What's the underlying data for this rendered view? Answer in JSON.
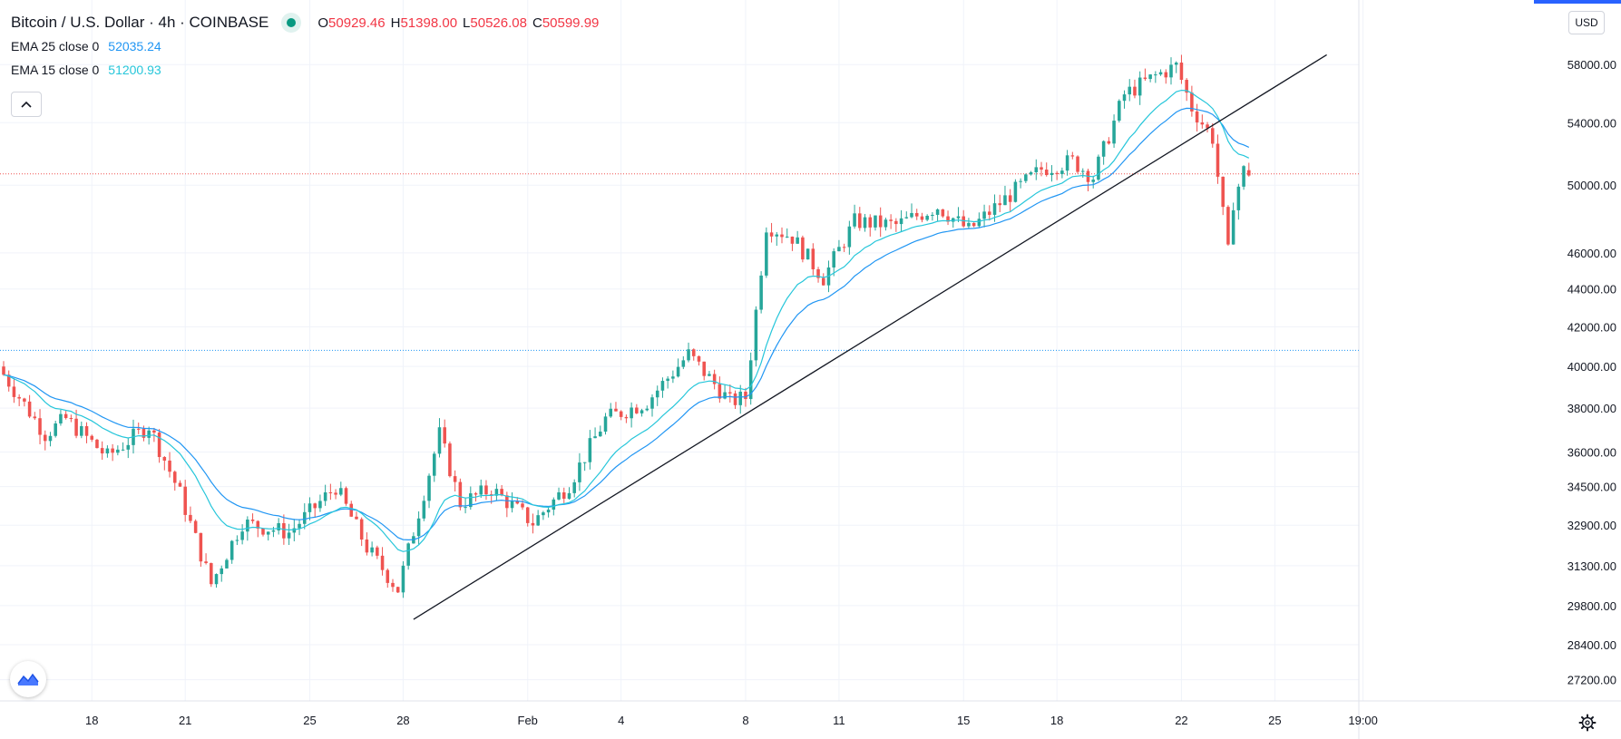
{
  "header": {
    "title": "Bitcoin / U.S. Dollar · 4h · COINBASE",
    "ohlc": [
      {
        "key": "O",
        "value": "50929.46"
      },
      {
        "key": "H",
        "value": "51398.00"
      },
      {
        "key": "L",
        "value": "50526.08"
      },
      {
        "key": "C",
        "value": "50599.99"
      }
    ]
  },
  "indicators": [
    {
      "label": "EMA 25 close 0",
      "value": "52035.24",
      "color": "#2196f3"
    },
    {
      "label": "EMA 15 close 0",
      "value": "51200.93",
      "color": "#26c6da"
    }
  ],
  "toolbar": {
    "currency": "USD"
  },
  "colors": {
    "up": "#26a69a",
    "down": "#ef5350",
    "ema25": "#2196f3",
    "ema15": "#26c6da",
    "trendline": "#131722",
    "price_line": "#ef5350",
    "level_line": "#2196f3"
  },
  "chart_data": {
    "type": "candlestick",
    "interval": "4h",
    "y_scale": "log",
    "ylim": [
      26500,
      62800
    ],
    "price_ticks": [
      "27200.00",
      "28400.00",
      "29800.00",
      "31300.00",
      "32900.00",
      "34500.00",
      "36000.00",
      "38000.00",
      "40000.00",
      "42000.00",
      "44000.00",
      "46000.00",
      "50000.00",
      "54000.00",
      "58000.00"
    ],
    "time_ticks": [
      {
        "label": "18",
        "idx": 17
      },
      {
        "label": "21",
        "idx": 35
      },
      {
        "label": "25",
        "idx": 59
      },
      {
        "label": "28",
        "idx": 77
      },
      {
        "label": "Feb",
        "idx": 101
      },
      {
        "label": "4",
        "idx": 119
      },
      {
        "label": "8",
        "idx": 143
      },
      {
        "label": "11",
        "idx": 161
      },
      {
        "label": "15",
        "idx": 185
      },
      {
        "label": "18",
        "idx": 203
      },
      {
        "label": "22",
        "idx": 227
      },
      {
        "label": "25",
        "idx": 245
      },
      {
        "label": "19:00",
        "idx": 262
      }
    ],
    "keypoints": [
      [
        0,
        39600
      ],
      [
        8,
        36800
      ],
      [
        12,
        37500
      ],
      [
        20,
        35800
      ],
      [
        28,
        37200
      ],
      [
        34,
        34200
      ],
      [
        40,
        30600
      ],
      [
        46,
        33000
      ],
      [
        55,
        32600
      ],
      [
        64,
        34500
      ],
      [
        70,
        32000
      ],
      [
        76,
        30400
      ],
      [
        84,
        36800
      ],
      [
        88,
        33800
      ],
      [
        94,
        34400
      ],
      [
        102,
        33000
      ],
      [
        109,
        34600
      ],
      [
        116,
        37500
      ],
      [
        124,
        38300
      ],
      [
        132,
        40600
      ],
      [
        140,
        38300
      ],
      [
        143,
        38500
      ],
      [
        147,
        47600
      ],
      [
        152,
        46900
      ],
      [
        158,
        44600
      ],
      [
        164,
        47800
      ],
      [
        172,
        47600
      ],
      [
        180,
        48700
      ],
      [
        186,
        47300
      ],
      [
        192,
        48900
      ],
      [
        200,
        51000
      ],
      [
        206,
        51500
      ],
      [
        210,
        50500
      ],
      [
        216,
        55900
      ],
      [
        222,
        57200
      ],
      [
        226,
        57900
      ],
      [
        229,
        55000
      ],
      [
        233,
        53000
      ],
      [
        236,
        46000
      ],
      [
        237,
        49000
      ],
      [
        239,
        50900
      ],
      [
        240,
        50599.99
      ]
    ],
    "last_candle": {
      "open": 50929.46,
      "high": 51398.0,
      "low": 50526.08,
      "close": 50599.99
    },
    "horizontal_levels": [
      {
        "price": 50700,
        "style": "dotted",
        "color": "#ef5350"
      },
      {
        "price": 40800,
        "style": "dotted",
        "color": "#2196f3"
      }
    ],
    "trendline": {
      "from": {
        "idx": 79,
        "price": 29300
      },
      "to": {
        "idx": 255,
        "price": 58700
      }
    },
    "ema_periods": [
      25,
      15
    ]
  }
}
